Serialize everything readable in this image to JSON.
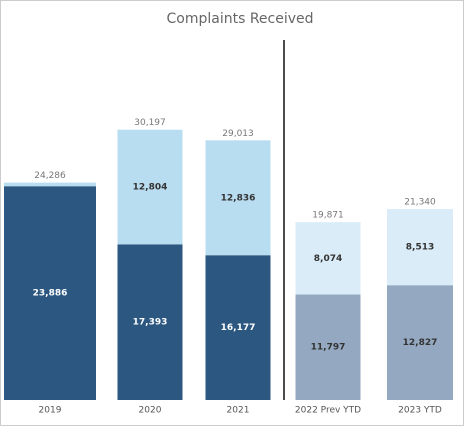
{
  "chart_data": {
    "type": "stacked_bar",
    "title": "Complaints Received",
    "categories": [
      "2019",
      "2020",
      "2021",
      "2022 Prev YTD",
      "2023 YTD"
    ],
    "series": [
      {
        "colors": [
          "#2b5780",
          "#2b5780",
          "#2b5780",
          "#94a9c1",
          "#94a9c1"
        ],
        "values": [
          23886,
          17393,
          16177,
          11797,
          12827
        ],
        "value_labels": [
          "23,886",
          "17,393",
          "16,177",
          "11,797",
          "12,827"
        ]
      },
      {
        "colors": [
          "#b8dcf0",
          "#b8dcf0",
          "#b8dcf0",
          "#d9ecf7",
          "#d9ecf7"
        ],
        "values": [
          400,
          12804,
          12836,
          8074,
          8513
        ],
        "value_labels": [
          null,
          "12,804",
          "12,836",
          "8,074",
          "8,513"
        ]
      }
    ],
    "totals": [
      24286,
      30197,
      29013,
      19871,
      21340
    ],
    "total_labels": [
      "24,286",
      "30,197",
      "29,013",
      "19,871",
      "21,340"
    ],
    "ylim": [
      0,
      40000
    ]
  }
}
